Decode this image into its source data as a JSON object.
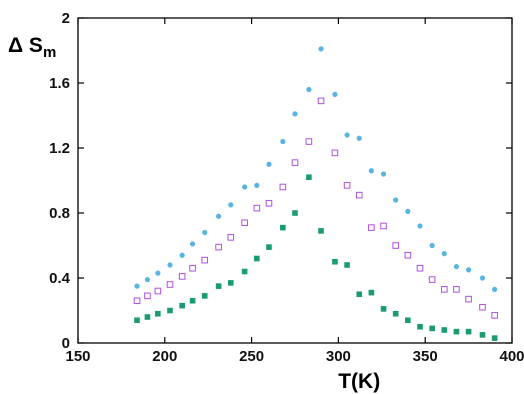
{
  "chart_data": {
    "type": "scatter",
    "xlabel": "T(K)",
    "ylabel": {
      "main": "Δ S",
      "sub": "m"
    },
    "xlim": [
      150,
      400
    ],
    "ylim": [
      0,
      2
    ],
    "xticks": [
      "150",
      "200",
      "250",
      "300",
      "350",
      "400"
    ],
    "yticks": [
      "0",
      "0.4",
      "0.8",
      "1.2",
      "1.6",
      "2"
    ],
    "grid": false,
    "legend": "none",
    "series": [
      {
        "marker": "filled-circle",
        "color": "#5ab4e2",
        "points": [
          [
            184,
            0.35
          ],
          [
            190,
            0.39
          ],
          [
            196,
            0.43
          ],
          [
            203,
            0.48
          ],
          [
            210,
            0.54
          ],
          [
            216,
            0.61
          ],
          [
            223,
            0.68
          ],
          [
            231,
            0.78
          ],
          [
            238,
            0.85
          ],
          [
            246,
            0.96
          ],
          [
            253,
            0.97
          ],
          [
            260,
            1.1
          ],
          [
            268,
            1.24
          ],
          [
            275,
            1.41
          ],
          [
            283,
            1.56
          ],
          [
            290,
            1.81
          ],
          [
            298,
            1.53
          ],
          [
            305,
            1.28
          ],
          [
            312,
            1.26
          ],
          [
            319,
            1.06
          ],
          [
            326,
            1.04
          ],
          [
            333,
            0.88
          ],
          [
            340,
            0.81
          ],
          [
            347,
            0.72
          ],
          [
            354,
            0.6
          ],
          [
            361,
            0.55
          ],
          [
            368,
            0.47
          ],
          [
            375,
            0.45
          ],
          [
            383,
            0.4
          ],
          [
            390,
            0.33
          ]
        ]
      },
      {
        "marker": "open-square",
        "color": "#b04fe0",
        "points": [
          [
            184,
            0.26
          ],
          [
            190,
            0.29
          ],
          [
            196,
            0.32
          ],
          [
            203,
            0.36
          ],
          [
            210,
            0.41
          ],
          [
            216,
            0.46
          ],
          [
            223,
            0.51
          ],
          [
            231,
            0.59
          ],
          [
            238,
            0.65
          ],
          [
            246,
            0.74
          ],
          [
            253,
            0.83
          ],
          [
            260,
            0.86
          ],
          [
            268,
            0.96
          ],
          [
            275,
            1.11
          ],
          [
            283,
            1.24
          ],
          [
            290,
            1.49
          ],
          [
            298,
            1.17
          ],
          [
            305,
            0.97
          ],
          [
            312,
            0.91
          ],
          [
            319,
            0.71
          ],
          [
            326,
            0.72
          ],
          [
            333,
            0.6
          ],
          [
            340,
            0.54
          ],
          [
            347,
            0.46
          ],
          [
            354,
            0.39
          ],
          [
            361,
            0.33
          ],
          [
            368,
            0.33
          ],
          [
            375,
            0.27
          ],
          [
            383,
            0.22
          ],
          [
            390,
            0.17
          ]
        ]
      },
      {
        "marker": "filled-square",
        "color": "#1a9c6e",
        "points": [
          [
            184,
            0.14
          ],
          [
            190,
            0.16
          ],
          [
            196,
            0.18
          ],
          [
            203,
            0.2
          ],
          [
            210,
            0.23
          ],
          [
            216,
            0.26
          ],
          [
            223,
            0.29
          ],
          [
            231,
            0.35
          ],
          [
            238,
            0.37
          ],
          [
            246,
            0.44
          ],
          [
            253,
            0.52
          ],
          [
            260,
            0.59
          ],
          [
            268,
            0.71
          ],
          [
            275,
            0.8
          ],
          [
            283,
            1.02
          ],
          [
            290,
            0.69
          ],
          [
            298,
            0.5
          ],
          [
            305,
            0.48
          ],
          [
            312,
            0.3
          ],
          [
            319,
            0.31
          ],
          [
            326,
            0.21
          ],
          [
            333,
            0.18
          ],
          [
            340,
            0.14
          ],
          [
            347,
            0.1
          ],
          [
            354,
            0.09
          ],
          [
            361,
            0.08
          ],
          [
            368,
            0.07
          ],
          [
            375,
            0.07
          ],
          [
            383,
            0.05
          ],
          [
            390,
            0.03
          ]
        ]
      }
    ]
  }
}
